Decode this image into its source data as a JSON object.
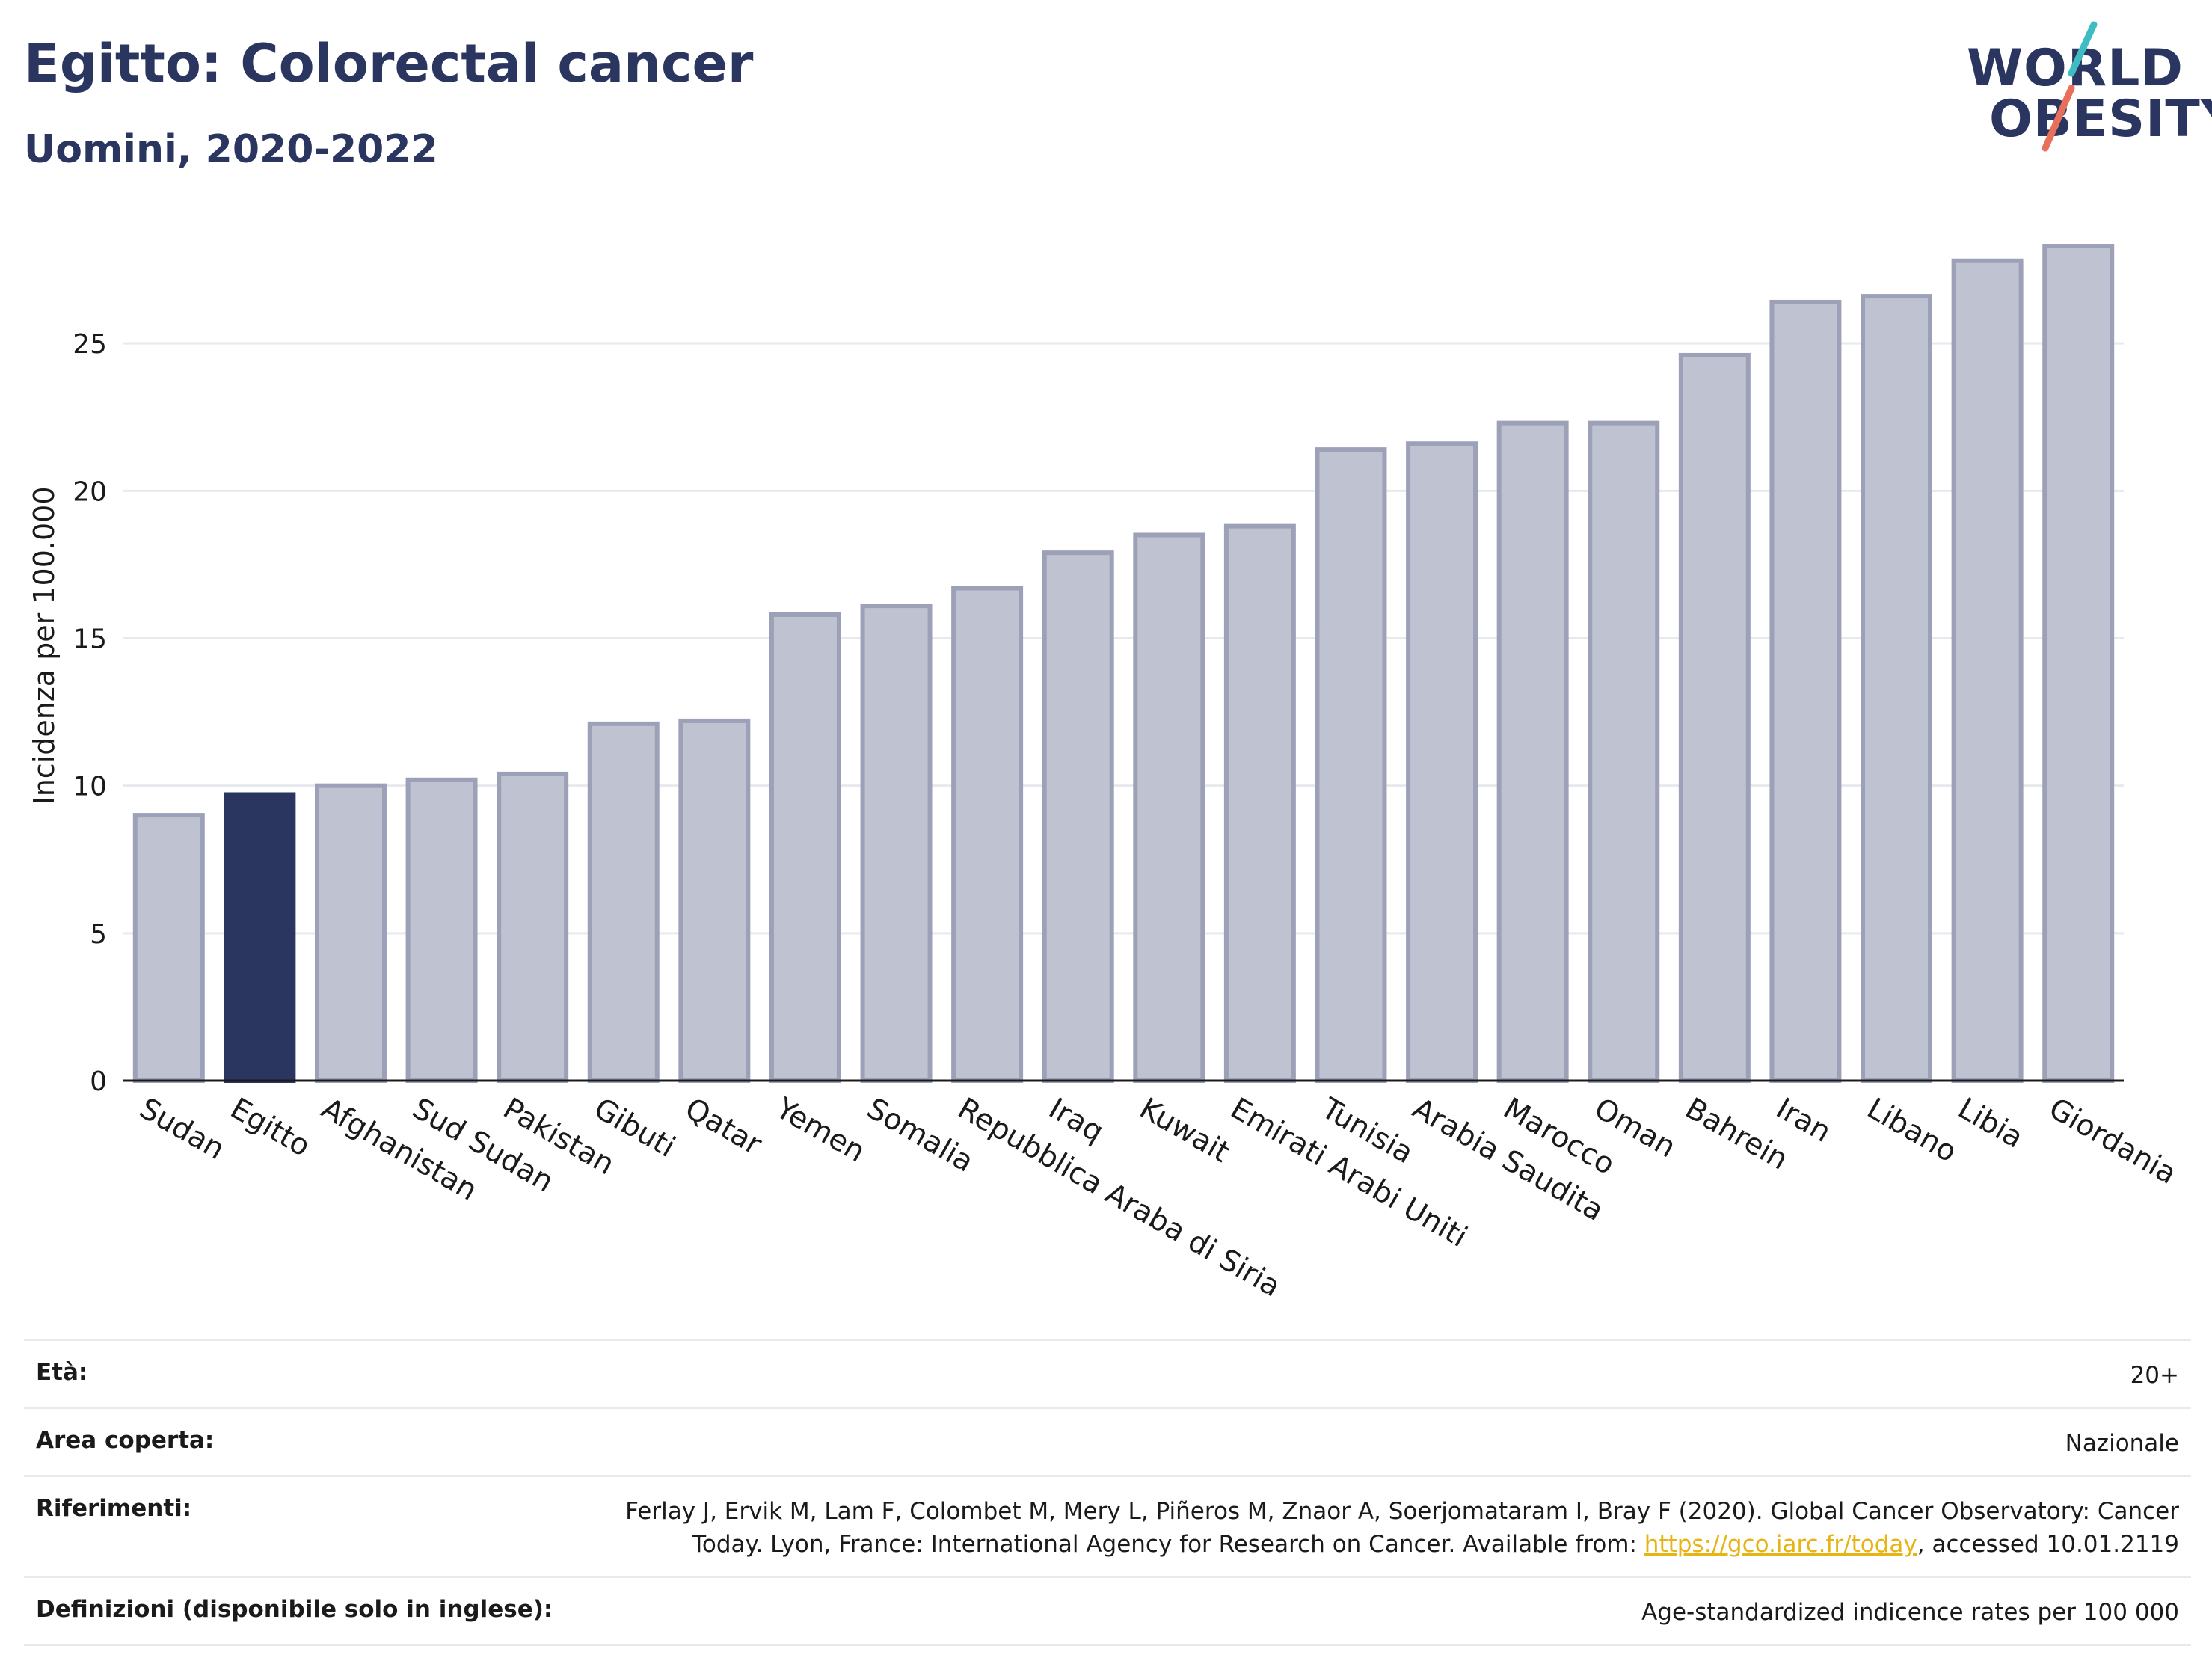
{
  "title": "Egitto: Colorectal cancer",
  "subtitle": "Uomini, 2020-2022",
  "logo": {
    "line1": "WORLD",
    "line2": "OBESITY",
    "slash_color_top": "#3dbcc4",
    "slash_color_bottom": "#e8705a"
  },
  "colors": {
    "highlight": "#2b3660",
    "bar": "#bfc2d0",
    "bar_edge": "#9da1b8",
    "grid": "#e6e9ee"
  },
  "chart_data": {
    "type": "bar",
    "categories": [
      "Sudan",
      "Egitto",
      "Afghanistan",
      "Sud Sudan",
      "Pakistan",
      "Gibuti",
      "Qatar",
      "Yemen",
      "Somalia",
      "Repubblica Araba di Siria",
      "Iraq",
      "Kuwait",
      "Emirati Arabi Uniti",
      "Tunisia",
      "Arabia Saudita",
      "Marocco",
      "Oman",
      "Bahrein",
      "Iran",
      "Libano",
      "Libia",
      "Giordania"
    ],
    "values": [
      9.0,
      9.7,
      10.0,
      10.2,
      10.4,
      12.1,
      12.2,
      15.8,
      16.1,
      16.7,
      17.9,
      18.5,
      18.8,
      21.4,
      21.6,
      22.3,
      22.3,
      24.6,
      26.4,
      26.6,
      27.8,
      28.3
    ],
    "highlight": "Egitto",
    "ylabel": "Incidenza per 100.000",
    "ylim": [
      0,
      30
    ],
    "yticks": [
      0,
      5,
      10,
      15,
      20,
      25
    ],
    "grid": true
  },
  "info": {
    "rows": [
      {
        "label": "Età:",
        "value": "20+"
      },
      {
        "label": "Area coperta:",
        "value": "Nazionale"
      },
      {
        "label": "Riferimenti:",
        "value_before": "Ferlay J, Ervik M, Lam F, Colombet M, Mery L, Piñeros M, Znaor A, Soerjomataram I, Bray F (2020). Global Cancer Observatory: Cancer Today. Lyon, France: International Agency for Research on Cancer. Available from: ",
        "link": "https://gco.iarc.fr/today",
        "value_after": ", accessed 10.01.2119"
      },
      {
        "label": "Definizioni (disponibile solo in inglese):",
        "value": "Age-standardized indicence rates per 100 000"
      }
    ]
  }
}
